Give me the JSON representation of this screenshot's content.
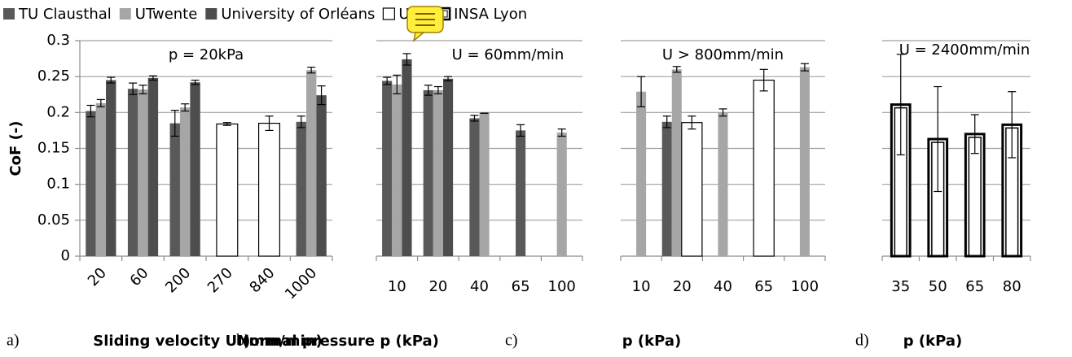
{
  "legend": [
    {
      "name": "TU Clausthal",
      "color": "#595959",
      "border": "none"
    },
    {
      "name": "UTwente",
      "color": "#a6a6a6",
      "border": "none"
    },
    {
      "name": "University of Orléans",
      "color": "#4d4d4d",
      "border": "none"
    },
    {
      "name": "UML",
      "color": "#ffffff",
      "border": "single"
    },
    {
      "name": "INSA Lyon",
      "color": "#ffffff",
      "border": "double"
    }
  ],
  "chart_data": [
    {
      "type": "bar",
      "panel": "a)",
      "title": "p = 20kPa",
      "ylabel": "CoF (-)",
      "xlabel": "Sliding velocity U (mm/min)",
      "rotate_xticks": true,
      "categories": [
        "20",
        "60",
        "200",
        "270",
        "840",
        "1000"
      ],
      "series": [
        {
          "values": [
            0.202,
            0.233,
            0.185,
            null,
            null,
            0.187
          ],
          "errors": [
            0.008,
            0.008,
            0.018,
            null,
            null,
            0.008
          ]
        },
        {
          "values": [
            0.213,
            0.232,
            0.207,
            null,
            null,
            0.259
          ],
          "errors": [
            0.005,
            0.006,
            0.005,
            null,
            null,
            0.004
          ]
        },
        {
          "values": [
            0.245,
            0.248,
            0.242,
            null,
            null,
            0.224
          ],
          "errors": [
            0.004,
            0.003,
            0.003,
            null,
            null,
            0.013
          ]
        },
        {
          "values": [
            null,
            null,
            null,
            0.184,
            0.185,
            null
          ],
          "errors": [
            null,
            null,
            null,
            0.002,
            0.01,
            null
          ]
        },
        {
          "values": [
            null,
            null,
            null,
            null,
            null,
            null
          ],
          "errors": [
            null,
            null,
            null,
            null,
            null,
            null
          ]
        }
      ],
      "ylim": [
        0,
        0.3
      ],
      "yticks": [
        0,
        0.05,
        0.1,
        0.15,
        0.2,
        0.25,
        0.3
      ],
      "grid": true
    },
    {
      "type": "bar",
      "panel": "b)",
      "title": "U = 60mm/min",
      "xlabel": "Normal pressure p (kPa)",
      "categories": [
        "10",
        "20",
        "40",
        "65",
        "100"
      ],
      "series": [
        {
          "values": [
            0.244,
            0.231,
            0.192,
            0.175,
            null
          ],
          "errors": [
            0.005,
            0.007,
            0.004,
            0.008,
            null
          ]
        },
        {
          "values": [
            0.239,
            0.231,
            0.199,
            null,
            0.172
          ],
          "errors": [
            0.013,
            0.005,
            0,
            null,
            0.005
          ]
        },
        {
          "values": [
            0.274,
            0.247,
            null,
            null,
            null
          ],
          "errors": [
            0.008,
            0.003,
            null,
            null,
            null
          ]
        },
        {
          "values": [
            null,
            null,
            null,
            null,
            null
          ],
          "errors": [
            null,
            null,
            null,
            null,
            null
          ]
        },
        {
          "values": [
            null,
            null,
            null,
            null,
            null
          ],
          "errors": [
            null,
            null,
            null,
            null,
            null
          ]
        }
      ],
      "ylim": [
        0,
        0.3
      ],
      "yticks": [
        0,
        0.05,
        0.1,
        0.15,
        0.2,
        0.25,
        0.3
      ],
      "grid": true
    },
    {
      "type": "bar",
      "panel": "c)",
      "title": "U > 800mm/min",
      "xlabel": "p (kPa)",
      "categories": [
        "10",
        "20",
        "40",
        "65",
        "100"
      ],
      "series": [
        {
          "values": [
            null,
            0.187,
            null,
            null,
            null
          ],
          "errors": [
            null,
            0.008,
            null,
            null,
            null
          ]
        },
        {
          "values": [
            0.229,
            0.26,
            0.2,
            null,
            0.263
          ],
          "errors": [
            0.021,
            0.004,
            0.005,
            null,
            0.005
          ]
        },
        {
          "values": [
            null,
            null,
            null,
            null,
            null
          ],
          "errors": [
            null,
            null,
            null,
            null,
            null
          ]
        },
        {
          "values": [
            null,
            0.186,
            null,
            0.245,
            null
          ],
          "errors": [
            null,
            0.009,
            null,
            0.015,
            null
          ]
        },
        {
          "values": [
            null,
            null,
            null,
            null,
            null
          ],
          "errors": [
            null,
            null,
            null,
            null,
            null
          ]
        }
      ],
      "ylim": [
        0,
        0.3
      ],
      "yticks": [
        0,
        0.05,
        0.1,
        0.15,
        0.2,
        0.25,
        0.3
      ],
      "grid": true
    },
    {
      "type": "bar",
      "panel": "d)",
      "title": "U = 2400mm/min",
      "xlabel": "p (kPa)",
      "categories": [
        "35",
        "50",
        "65",
        "80"
      ],
      "series": [
        {
          "values": [
            null,
            null,
            null,
            null
          ],
          "errors": [
            null,
            null,
            null,
            null
          ]
        },
        {
          "values": [
            null,
            null,
            null,
            null
          ],
          "errors": [
            null,
            null,
            null,
            null
          ]
        },
        {
          "values": [
            null,
            null,
            null,
            null
          ],
          "errors": [
            null,
            null,
            null,
            null
          ]
        },
        {
          "values": [
            null,
            null,
            null,
            null
          ],
          "errors": [
            null,
            null,
            null,
            null
          ]
        },
        {
          "values": [
            0.211,
            0.163,
            0.17,
            0.183
          ],
          "errors": [
            0.07,
            0.073,
            0.027,
            0.046
          ]
        }
      ],
      "ylim": [
        0,
        0.3
      ],
      "yticks": [
        0,
        0.05,
        0.1,
        0.15,
        0.2,
        0.25,
        0.3
      ],
      "grid": true
    }
  ]
}
